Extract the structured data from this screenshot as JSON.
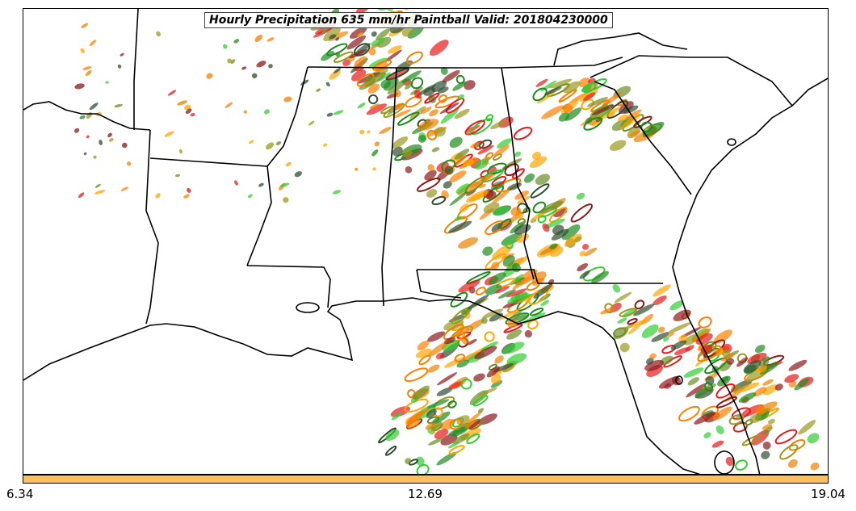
{
  "map": {
    "title": "Hourly Precipitation 635 mm/hr Paintball Valid: 201804230000",
    "colorbar": {
      "color": "#ffbf5c",
      "ticks": [
        "6.34",
        "12.69",
        "19.04"
      ]
    },
    "member_colors": [
      "#e8191b",
      "#f08000",
      "#ff7f00",
      "#8b1a1a",
      "#6b8e23",
      "#1e8b1e",
      "#32cd32",
      "#2f4f2f",
      "#9a9a20",
      "#ffa500"
    ]
  }
}
